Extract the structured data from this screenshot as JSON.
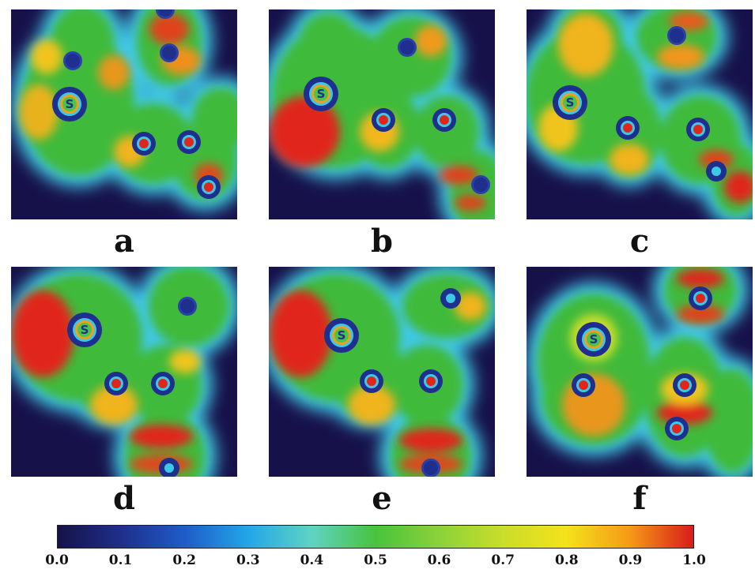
{
  "figure": {
    "panels": [
      {
        "id": "a",
        "label": "a"
      },
      {
        "id": "b",
        "label": "b"
      },
      {
        "id": "c",
        "label": "c"
      },
      {
        "id": "d",
        "label": "d"
      },
      {
        "id": "e",
        "label": "e"
      },
      {
        "id": "f",
        "label": "f"
      }
    ],
    "atom_label": "S",
    "colorbar": {
      "ticks": [
        "0.0",
        "0.1",
        "0.2",
        "0.3",
        "0.4",
        "0.5",
        "0.6",
        "0.7",
        "0.8",
        "0.9",
        "1.0"
      ],
      "min": 0.0,
      "max": 1.0,
      "colors": [
        "#16124a",
        "#1f2f8a",
        "#1f5cc8",
        "#23a6e8",
        "#5fd3c2",
        "#49c23e",
        "#8bd23a",
        "#c9dd2a",
        "#f4e21a",
        "#f59a16",
        "#d81c1c"
      ]
    },
    "colors": {
      "background": "#17114a",
      "low": "#2a40a8",
      "ring": "#3fc8e6",
      "mid": "#3fba3a",
      "high": "#f0d71e",
      "peak": "#e0261c"
    }
  }
}
